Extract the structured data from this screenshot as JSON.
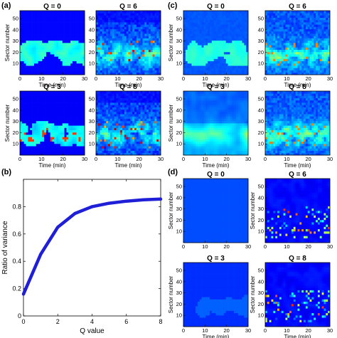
{
  "chart_data": [
    {
      "panel": "(a)",
      "type": "heatmap",
      "subplots": [
        {
          "title": "Q = 0",
          "pattern": "blobs_q0",
          "xlabel": "Time (min)",
          "ylabel": "Sector number"
        },
        {
          "title": "Q = 6",
          "pattern": "noisy_q6",
          "xlabel": "Time (min)",
          "ylabel": ""
        },
        {
          "title": "Q = 3",
          "pattern": "blobs_q3",
          "xlabel": "Time (min)",
          "ylabel": "Sector number"
        },
        {
          "title": "Q = 8",
          "pattern": "noisy_q8",
          "xlabel": "Time (min)",
          "ylabel": ""
        }
      ],
      "xlim": [
        0,
        30
      ],
      "ylim": [
        0,
        57
      ],
      "xticks": [
        "0",
        "10",
        "20",
        "30"
      ],
      "yticks": [
        "10",
        "20",
        "30",
        "40",
        "50"
      ]
    },
    {
      "panel": "(c)",
      "type": "heatmap",
      "subplots": [
        {
          "title": "Q = 0",
          "pattern": "smooth_q0",
          "xlabel": "Time (min)",
          "ylabel": "Sector number"
        },
        {
          "title": "Q = 6",
          "pattern": "smooth_q6",
          "xlabel": "Time (min)",
          "ylabel": ""
        },
        {
          "title": "Q = 3",
          "pattern": "smooth_q3",
          "xlabel": "Time (min)",
          "ylabel": "Sector number"
        },
        {
          "title": "Q = 8",
          "pattern": "smooth_q8",
          "xlabel": "Time (min)",
          "ylabel": ""
        }
      ],
      "xlim": [
        0,
        30
      ],
      "ylim": [
        0,
        57
      ],
      "xticks": [
        "0",
        "10",
        "20",
        "30"
      ],
      "yticks": [
        "10",
        "20",
        "30",
        "40",
        "50"
      ]
    },
    {
      "panel": "(b)",
      "type": "line",
      "x": [
        0,
        1,
        2,
        3,
        4,
        5,
        6,
        7,
        8
      ],
      "series": [
        {
          "values": [
            0.16,
            0.45,
            0.65,
            0.75,
            0.8,
            0.825,
            0.84,
            0.85,
            0.855
          ]
        }
      ],
      "xlabel": "Q value",
      "ylabel": "Ratio of variance",
      "xlim": [
        0,
        8
      ],
      "ylim": [
        0,
        1
      ],
      "xticks": [
        "0",
        "2",
        "4",
        "6",
        "8"
      ],
      "yticks": [
        "0",
        "0.2",
        "0.4",
        "0.6",
        "0.8"
      ],
      "color": "#1f1fd8"
    },
    {
      "panel": "(d)",
      "type": "heatmap",
      "subplots": [
        {
          "title": "Q = 0",
          "pattern": "flat_q0",
          "xlabel": "",
          "ylabel": "Sector number"
        },
        {
          "title": "Q = 6",
          "pattern": "sparse_q6",
          "xlabel": "",
          "ylabel": "Sector number"
        },
        {
          "title": "Q = 3",
          "pattern": "faint_q3",
          "xlabel": "Time (min)",
          "ylabel": "Sector number"
        },
        {
          "title": "Q = 8",
          "pattern": "sparse_q8",
          "xlabel": "Time (min)",
          "ylabel": "Sector number"
        }
      ],
      "xlim": [
        0,
        30
      ],
      "ylim": [
        0,
        57
      ],
      "xticks": [
        "0",
        "10",
        "20",
        "30"
      ],
      "yticks": [
        "10",
        "20",
        "30",
        "40",
        "50"
      ]
    }
  ],
  "colormap": "jet"
}
